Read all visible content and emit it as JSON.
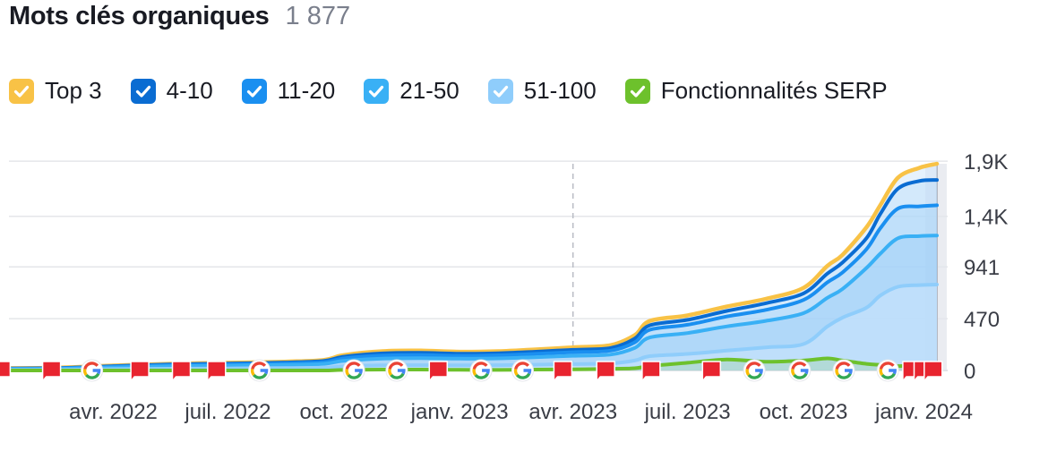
{
  "header": {
    "title": "Mots clés organiques",
    "count": "1 877"
  },
  "legend": [
    {
      "label": "Top 3",
      "color": "#f8c246"
    },
    {
      "label": "4-10",
      "color": "#0a6cd2"
    },
    {
      "label": "11-20",
      "color": "#1a8ff0"
    },
    {
      "label": "21-50",
      "color": "#39b0f5"
    },
    {
      "label": "51-100",
      "color": "#8fcdfb"
    },
    {
      "label": "Fonctionnalités SERP",
      "color": "#6dc12c"
    }
  ],
  "icons": {
    "check": "check-icon",
    "google": "google-icon",
    "flag": "flag-icon"
  },
  "chart_data": {
    "type": "area",
    "title": "Mots clés organiques",
    "x": [
      "2022-01-01",
      "2022-02-15",
      "2022-04-01",
      "2022-05-15",
      "2022-07-01",
      "2022-08-15",
      "2022-09-15",
      "2022-10-01",
      "2022-11-01",
      "2022-12-01",
      "2023-01-01",
      "2023-02-01",
      "2023-03-01",
      "2023-04-01",
      "2023-05-01",
      "2023-05-20",
      "2023-06-01",
      "2023-07-01",
      "2023-08-01",
      "2023-09-01",
      "2023-10-01",
      "2023-10-20",
      "2023-11-01",
      "2023-11-20",
      "2023-12-01",
      "2023-12-15",
      "2024-01-01",
      "2024-01-15"
    ],
    "series": [
      {
        "name": "Top 3",
        "values": [
          20,
          25,
          45,
          60,
          70,
          80,
          95,
          140,
          175,
          180,
          170,
          175,
          190,
          210,
          230,
          320,
          450,
          500,
          580,
          650,
          750,
          950,
          1050,
          1300,
          1500,
          1750,
          1840,
          1877
        ]
      },
      {
        "name": "4-10",
        "values": [
          18,
          22,
          40,
          55,
          63,
          72,
          86,
          125,
          155,
          160,
          152,
          157,
          170,
          188,
          205,
          290,
          410,
          460,
          540,
          610,
          700,
          880,
          980,
          1200,
          1420,
          1650,
          1720,
          1730
        ]
      },
      {
        "name": "11-20",
        "values": [
          15,
          19,
          35,
          48,
          55,
          63,
          75,
          110,
          135,
          140,
          133,
          138,
          150,
          166,
          180,
          255,
          370,
          415,
          490,
          550,
          640,
          800,
          890,
          1100,
          1290,
          1470,
          1490,
          1500
        ]
      },
      {
        "name": "21-50",
        "values": [
          12,
          15,
          28,
          38,
          44,
          50,
          60,
          88,
          108,
          112,
          107,
          110,
          120,
          133,
          145,
          205,
          300,
          340,
          400,
          450,
          520,
          660,
          740,
          930,
          1060,
          1200,
          1220,
          1225
        ]
      },
      {
        "name": "51-100",
        "values": [
          5,
          6,
          12,
          16,
          19,
          22,
          26,
          38,
          47,
          48,
          46,
          48,
          52,
          58,
          64,
          90,
          130,
          150,
          180,
          210,
          240,
          400,
          480,
          570,
          680,
          760,
          775,
          780
        ]
      },
      {
        "name": "Fonctionnalités SERP",
        "values": [
          0,
          0,
          0,
          0,
          0,
          0,
          0,
          5,
          8,
          8,
          6,
          5,
          8,
          10,
          15,
          20,
          40,
          70,
          100,
          80,
          90,
          110,
          90,
          60,
          50,
          40,
          45,
          40
        ]
      }
    ],
    "x_ticks": [
      "avr. 2022",
      "juil. 2022",
      "oct. 2022",
      "janv. 2023",
      "avr. 2023",
      "juil. 2023",
      "oct. 2023",
      "janv. 2024"
    ],
    "x_tick_dates": [
      "2022-04-01",
      "2022-07-01",
      "2022-10-01",
      "2023-01-01",
      "2023-04-01",
      "2023-07-01",
      "2023-10-01",
      "2024-01-01"
    ],
    "y_ticks": [
      0,
      470,
      941,
      1400,
      1900
    ],
    "y_tick_labels": [
      "0",
      "470",
      "941",
      "1,4K",
      "1,9K"
    ],
    "ylim": [
      0,
      1877
    ],
    "grid": true,
    "legend_position": "top",
    "highlight_date": "2023-04-01",
    "markers": [
      {
        "type": "flag",
        "date": "2022-01-02"
      },
      {
        "type": "flag",
        "date": "2022-02-11"
      },
      {
        "type": "google",
        "date": "2022-03-15"
      },
      {
        "type": "flag",
        "date": "2022-04-22"
      },
      {
        "type": "flag",
        "date": "2022-05-25"
      },
      {
        "type": "flag",
        "date": "2022-06-22"
      },
      {
        "type": "google",
        "date": "2022-07-26"
      },
      {
        "type": "google",
        "date": "2022-10-09"
      },
      {
        "type": "google",
        "date": "2022-11-12"
      },
      {
        "type": "flag",
        "date": "2022-12-15"
      },
      {
        "type": "google",
        "date": "2023-01-18"
      },
      {
        "type": "google",
        "date": "2023-02-20"
      },
      {
        "type": "flag",
        "date": "2023-03-24"
      },
      {
        "type": "flag",
        "date": "2023-04-27"
      },
      {
        "type": "flag",
        "date": "2023-06-02"
      },
      {
        "type": "flag",
        "date": "2023-07-20"
      },
      {
        "type": "google",
        "date": "2023-08-23"
      },
      {
        "type": "google",
        "date": "2023-09-28"
      },
      {
        "type": "google",
        "date": "2023-11-02"
      },
      {
        "type": "google",
        "date": "2023-12-07"
      },
      {
        "type": "flag",
        "date": "2023-12-26"
      },
      {
        "type": "flag",
        "date": "2024-01-04"
      },
      {
        "type": "flag",
        "date": "2024-01-12"
      }
    ]
  }
}
